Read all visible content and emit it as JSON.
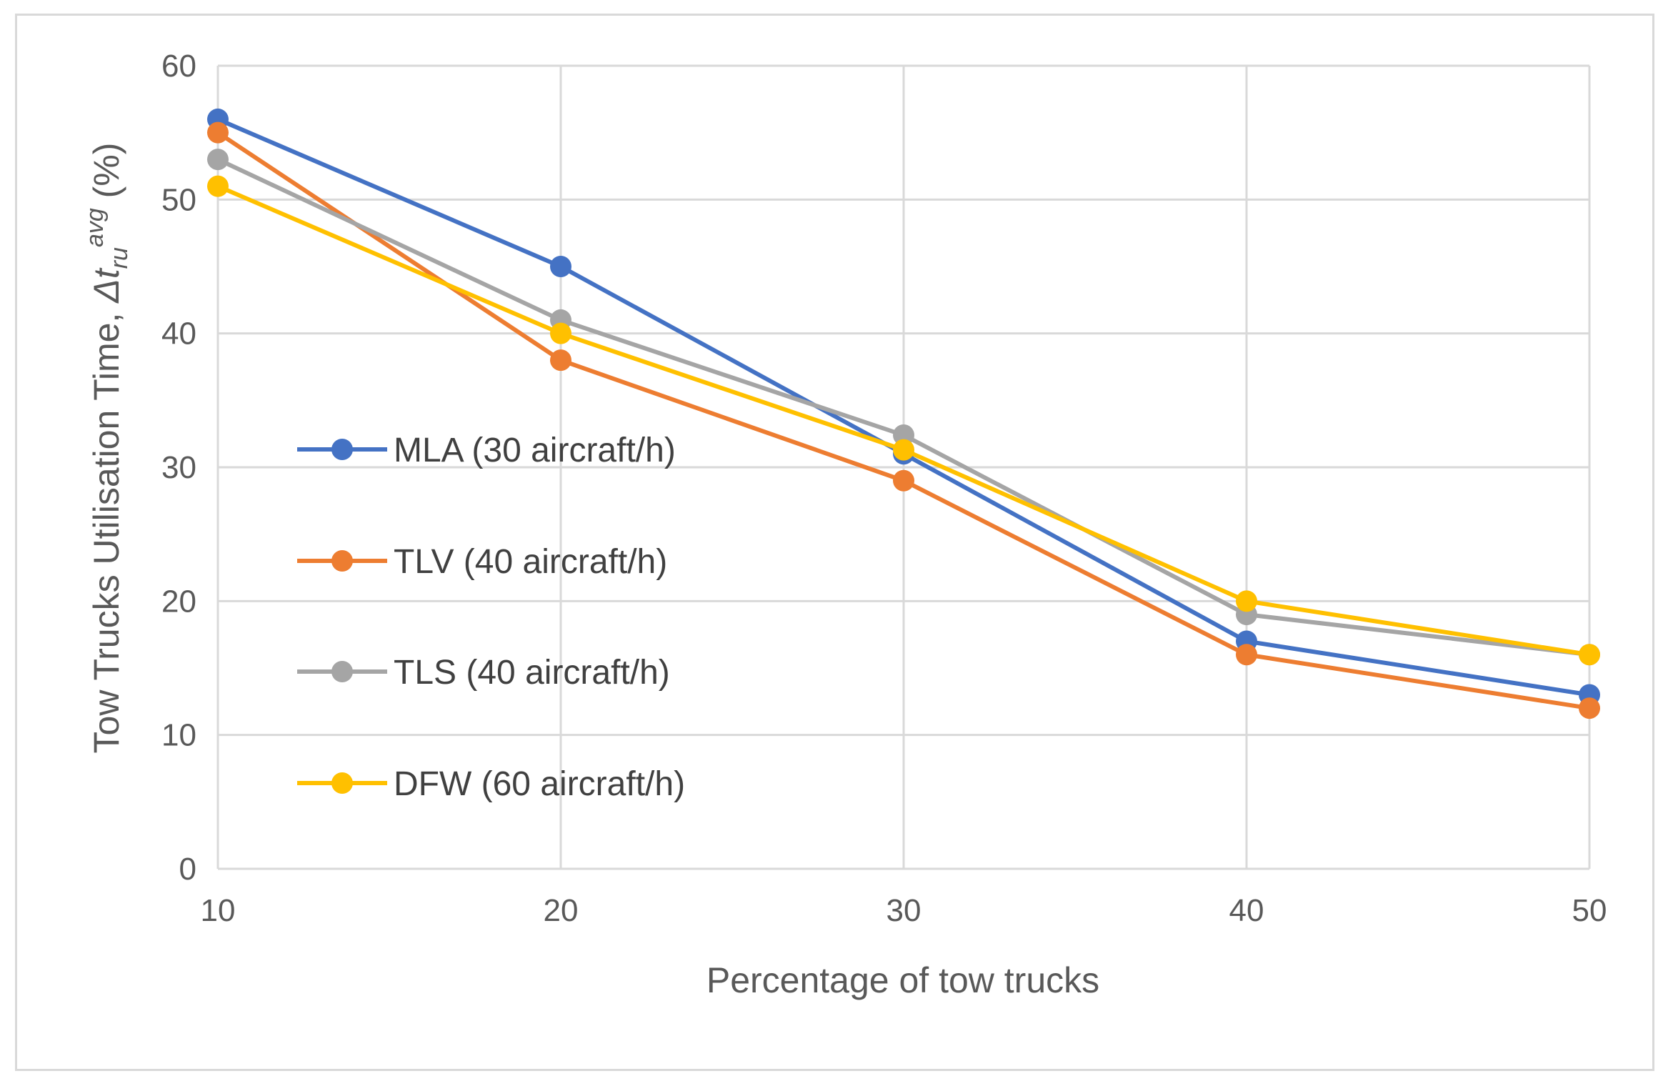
{
  "chart_data": {
    "type": "line",
    "title": "",
    "xlabel": "Percentage of tow trucks",
    "ylabel_main": "Tow Trucks Utilisation Time, ",
    "ylabel_symbol": "Δt",
    "ylabel_subscript": "ru",
    "ylabel_superscript": "avg",
    "ylabel_unit": " (%)",
    "x": [
      10,
      20,
      30,
      40,
      50
    ],
    "x_tick_labels": [
      "10",
      "20",
      "30",
      "40",
      "50"
    ],
    "xlim": [
      10,
      50
    ],
    "ylim": [
      0,
      60
    ],
    "y_ticks": [
      0,
      10,
      20,
      30,
      40,
      50,
      60
    ],
    "y_tick_labels": [
      "0",
      "10",
      "20",
      "30",
      "40",
      "50",
      "60"
    ],
    "grid": true,
    "legend_position": "center-left",
    "series": [
      {
        "name": "MLA (30 aircraft/h)",
        "color": "#4472c4",
        "values": [
          56,
          45,
          31,
          17,
          13
        ]
      },
      {
        "name": "TLV (40 aircraft/h)",
        "color": "#ed7d31",
        "values": [
          55,
          38,
          29,
          16,
          12
        ]
      },
      {
        "name": "TLS (40 aircraft/h)",
        "color": "#a5a5a5",
        "values": [
          53,
          41,
          32.4,
          19,
          16
        ]
      },
      {
        "name": "DFW (60 aircraft/h)",
        "color": "#ffc000",
        "values": [
          51,
          40,
          31.3,
          20,
          16
        ]
      }
    ],
    "colors": {
      "grid": "#d9d9d9",
      "axis_text": "#595959",
      "legend_text": "#404040"
    }
  }
}
